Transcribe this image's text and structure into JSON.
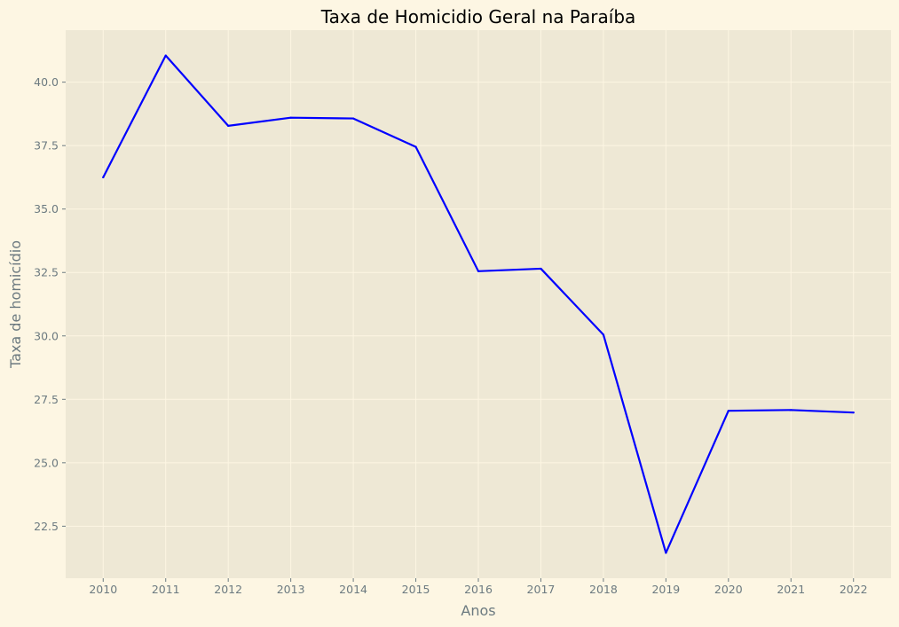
{
  "chart_data": {
    "type": "line",
    "title": "Taxa de Homicidio Geral na Paraíba",
    "xlabel": "Anos",
    "ylabel": "Taxa de homicídio",
    "categories": [
      "2010",
      "2011",
      "2012",
      "2013",
      "2014",
      "2015",
      "2016",
      "2017",
      "2018",
      "2019",
      "2020",
      "2021",
      "2022"
    ],
    "series": [
      {
        "values": [
          36.25,
          41.05,
          38.28,
          38.6,
          38.57,
          37.45,
          32.55,
          32.65,
          30.05,
          21.45,
          27.05,
          27.08,
          26.98
        ]
      }
    ],
    "yticks": [
      22.5,
      25.0,
      27.5,
      30.0,
      32.5,
      35.0,
      37.5,
      40.0
    ],
    "ytick_labels": [
      "22.5",
      "25.0",
      "27.5",
      "30.0",
      "32.5",
      "35.0",
      "37.5",
      "40.0"
    ],
    "ylim": [
      20.45,
      42.05
    ],
    "grid": true,
    "colors": {
      "figure_background": "#fdf6e3",
      "plot_background": "#eee8d5",
      "grid": "#fdf6e3",
      "line": "#0000ff",
      "text": "#6c7a80",
      "title": "#000000"
    }
  }
}
